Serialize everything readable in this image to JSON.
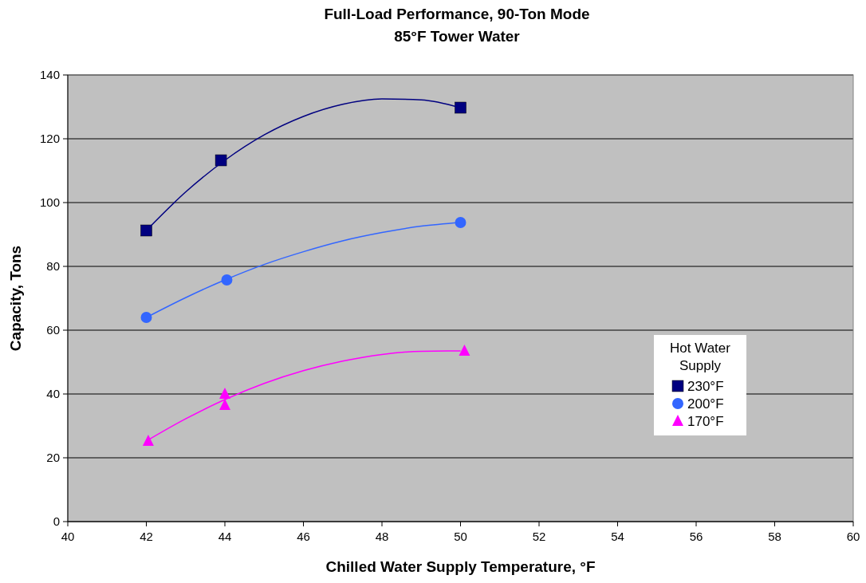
{
  "chart_data": {
    "type": "scatter",
    "title": "Full-Load Performance, 90-Ton Mode",
    "subtitle": "85°F Tower Water",
    "xlabel": "Chilled Water Supply Temperature, °F",
    "ylabel": "Capacity, Tons",
    "legend_title": "Hot Water Supply",
    "legend": "right",
    "grid": "y",
    "xlim": [
      40,
      60
    ],
    "xticks": [
      40,
      42,
      44,
      46,
      48,
      50,
      52,
      54,
      56,
      58,
      60
    ],
    "ylim": [
      0,
      140
    ],
    "yticks": [
      0,
      20,
      40,
      60,
      80,
      100,
      120,
      140
    ],
    "series": [
      {
        "name": "230°F",
        "color": "#000080",
        "marker": "square",
        "x": [
          42,
          43.9,
          50
        ],
        "values": [
          91.25,
          113.25,
          129.75
        ]
      },
      {
        "name": "200°F",
        "color": "#3366ff",
        "marker": "circle",
        "x": [
          42,
          44.05,
          50
        ],
        "values": [
          64,
          75.75,
          93.75
        ]
      },
      {
        "name": "170°F",
        "color": "#ff00ff",
        "marker": "triangle",
        "x": [
          42.05,
          44,
          44,
          50.1
        ],
        "values": [
          25.25,
          40,
          36.5,
          53.5
        ]
      },
      {
        "type": "line",
        "color": "#000080",
        "marker": "none",
        "x": [
          42,
          43,
          44,
          45,
          46,
          47,
          48,
          49,
          50
        ],
        "values": [
          91.25,
          103.3,
          113.25,
          121.2,
          127,
          130.8,
          132.5,
          132.2,
          129.75
        ]
      },
      {
        "type": "line",
        "color": "#3366ff",
        "marker": "none",
        "x": [
          42,
          43,
          44,
          45,
          46,
          47,
          48,
          49,
          50
        ],
        "values": [
          64,
          70.2,
          75.75,
          80.6,
          84.6,
          88,
          90.6,
          92.6,
          93.75
        ]
      },
      {
        "type": "line",
        "color": "#ff00ff",
        "marker": "none",
        "x": [
          42,
          43,
          44,
          45,
          46,
          47,
          48,
          49,
          50
        ],
        "values": [
          25.25,
          32.2,
          38.25,
          43.3,
          47.3,
          50.3,
          52.4,
          53.4,
          53.5
        ]
      }
    ]
  }
}
